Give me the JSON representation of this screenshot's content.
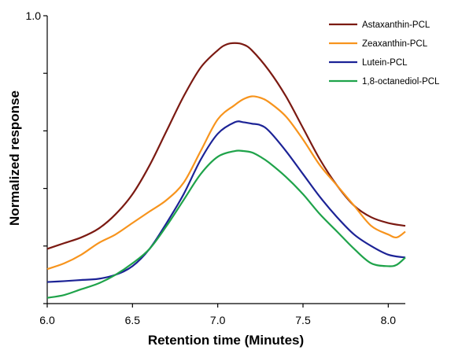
{
  "chart_data": {
    "type": "line",
    "xlabel": "Retention time (Minutes)",
    "ylabel": "Normalized response",
    "xlim": [
      6.0,
      8.1
    ],
    "ylim": [
      0.0,
      1.0
    ],
    "x_ticks": [
      6.0,
      6.5,
      7.0,
      7.5,
      8.0
    ],
    "x_tick_labels": [
      "6.0",
      "6.5",
      "7.0",
      "7.5",
      "8.0"
    ],
    "y_ticks": [
      0.0,
      0.2,
      0.4,
      0.6,
      0.8,
      1.0
    ],
    "y_tick_labels": [
      "",
      "",
      "",
      "",
      "",
      "1.0"
    ],
    "grid": false,
    "legend_position": "top-right",
    "series": [
      {
        "name": "Astaxanthin-PCL",
        "color": "#7b1a12",
        "x": [
          6.0,
          6.1,
          6.2,
          6.3,
          6.4,
          6.5,
          6.6,
          6.7,
          6.8,
          6.9,
          7.0,
          7.05,
          7.1,
          7.15,
          7.2,
          7.3,
          7.4,
          7.5,
          7.6,
          7.7,
          7.8,
          7.9,
          8.0,
          8.1
        ],
        "y": [
          0.19,
          0.21,
          0.23,
          0.26,
          0.31,
          0.38,
          0.48,
          0.6,
          0.72,
          0.82,
          0.88,
          0.9,
          0.905,
          0.9,
          0.88,
          0.81,
          0.72,
          0.61,
          0.5,
          0.41,
          0.34,
          0.3,
          0.28,
          0.27
        ]
      },
      {
        "name": "Zeaxanthin-PCL",
        "color": "#f7941d",
        "x": [
          6.0,
          6.1,
          6.2,
          6.3,
          6.4,
          6.5,
          6.6,
          6.7,
          6.8,
          6.9,
          7.0,
          7.1,
          7.15,
          7.2,
          7.25,
          7.3,
          7.4,
          7.5,
          7.6,
          7.7,
          7.8,
          7.9,
          8.0,
          8.05,
          8.1
        ],
        "y": [
          0.12,
          0.14,
          0.17,
          0.21,
          0.24,
          0.28,
          0.32,
          0.36,
          0.42,
          0.53,
          0.64,
          0.69,
          0.71,
          0.72,
          0.715,
          0.7,
          0.65,
          0.57,
          0.48,
          0.41,
          0.34,
          0.27,
          0.24,
          0.23,
          0.25
        ]
      },
      {
        "name": "Lutein-PCL",
        "color": "#1c2396",
        "x": [
          6.0,
          6.1,
          6.2,
          6.3,
          6.4,
          6.5,
          6.6,
          6.7,
          6.8,
          6.9,
          7.0,
          7.1,
          7.15,
          7.2,
          7.25,
          7.3,
          7.4,
          7.5,
          7.6,
          7.7,
          7.8,
          7.9,
          8.0,
          8.1
        ],
        "y": [
          0.075,
          0.078,
          0.082,
          0.086,
          0.1,
          0.13,
          0.19,
          0.28,
          0.38,
          0.5,
          0.59,
          0.63,
          0.63,
          0.625,
          0.62,
          0.6,
          0.53,
          0.45,
          0.37,
          0.3,
          0.24,
          0.2,
          0.17,
          0.16
        ]
      },
      {
        "name": "1,8-octanediol-PCL",
        "color": "#1fa34a",
        "x": [
          6.0,
          6.1,
          6.2,
          6.3,
          6.4,
          6.5,
          6.6,
          6.7,
          6.8,
          6.9,
          7.0,
          7.1,
          7.15,
          7.2,
          7.25,
          7.3,
          7.4,
          7.5,
          7.6,
          7.7,
          7.8,
          7.9,
          8.0,
          8.05,
          8.1
        ],
        "y": [
          0.02,
          0.03,
          0.05,
          0.07,
          0.1,
          0.14,
          0.19,
          0.27,
          0.36,
          0.45,
          0.51,
          0.53,
          0.53,
          0.525,
          0.51,
          0.49,
          0.44,
          0.38,
          0.31,
          0.25,
          0.19,
          0.14,
          0.13,
          0.135,
          0.16
        ]
      }
    ]
  }
}
